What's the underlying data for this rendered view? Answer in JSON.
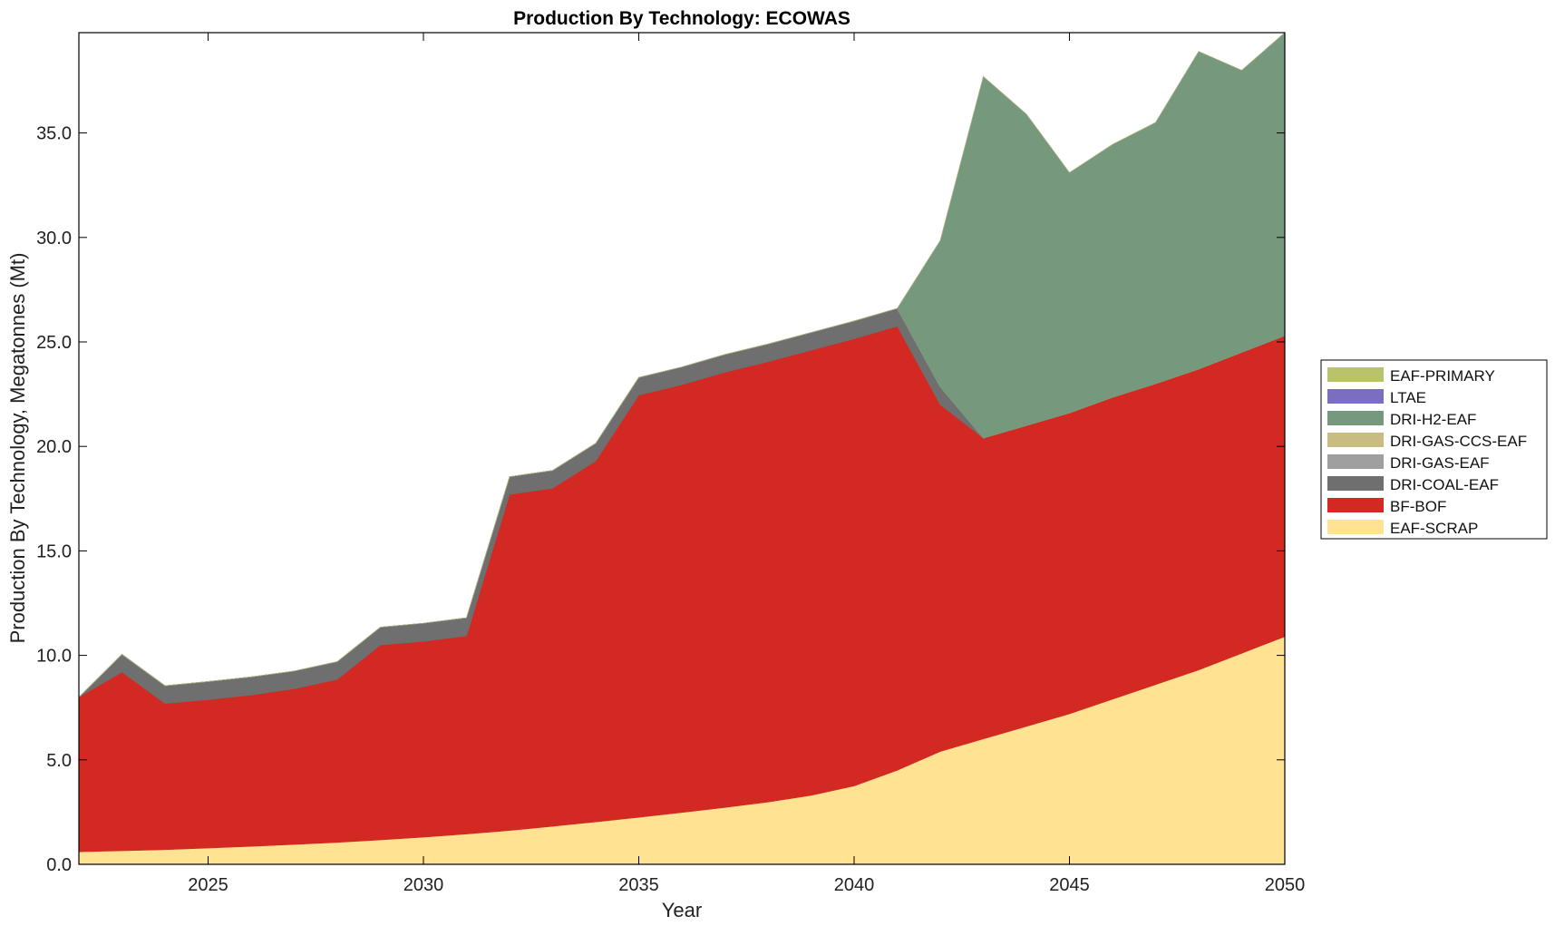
{
  "chart_data": {
    "type": "area",
    "stacked": true,
    "title": "Production By Technology: ECOWAS",
    "xlabel": "Year",
    "ylabel": "Production By Technology, Megatonnes (Mt)",
    "xlim": [
      2022,
      2050
    ],
    "ylim": [
      0,
      39.8
    ],
    "x_ticks": [
      2025,
      2030,
      2035,
      2040,
      2045,
      2050
    ],
    "y_ticks": [
      0,
      5,
      10,
      15,
      20,
      25,
      30,
      35
    ],
    "y_tick_labels": [
      "0.0",
      "5.0",
      "10.0",
      "15.0",
      "20.0",
      "25.0",
      "30.0",
      "35.0"
    ],
    "legend_position": "right",
    "x": [
      2022,
      2023,
      2024,
      2025,
      2026,
      2027,
      2028,
      2029,
      2030,
      2031,
      2032,
      2033,
      2034,
      2035,
      2036,
      2037,
      2038,
      2039,
      2040,
      2041,
      2042,
      2043,
      2044,
      2045,
      2046,
      2047,
      2048,
      2049,
      2050
    ],
    "series": [
      {
        "name": "EAF-SCRAP",
        "color": "#FFE292",
        "values": [
          0.6,
          0.65,
          0.7,
          0.78,
          0.86,
          0.95,
          1.05,
          1.17,
          1.3,
          1.45,
          1.62,
          1.82,
          2.03,
          2.25,
          2.48,
          2.72,
          2.98,
          3.3,
          3.75,
          4.5,
          5.4,
          6.0,
          6.6,
          7.2,
          7.9,
          8.6,
          9.3,
          10.1,
          10.9
        ]
      },
      {
        "name": "BF-BOF",
        "color": "#D22A23",
        "values": [
          7.4,
          8.55,
          7.0,
          7.1,
          7.24,
          7.45,
          7.8,
          9.33,
          9.37,
          9.48,
          16.08,
          16.18,
          17.27,
          20.2,
          20.47,
          20.83,
          21.07,
          21.3,
          21.4,
          21.25,
          16.6,
          14.4,
          14.4,
          14.4,
          14.45,
          14.4,
          14.4,
          14.4,
          14.4
        ]
      },
      {
        "name": "DRI-COAL-EAF",
        "color": "#6F6F6F",
        "values": [
          0.0,
          0.85,
          0.85,
          0.87,
          0.87,
          0.85,
          0.85,
          0.85,
          0.87,
          0.87,
          0.85,
          0.85,
          0.85,
          0.85,
          0.85,
          0.85,
          0.85,
          0.85,
          0.85,
          0.85,
          0.85,
          0.0,
          0.0,
          0.0,
          0.0,
          0.0,
          0.0,
          0.0,
          0.0
        ]
      },
      {
        "name": "DRI-GAS-EAF",
        "color": "#9F9F9F",
        "values": [
          0,
          0,
          0,
          0,
          0,
          0,
          0,
          0,
          0,
          0,
          0,
          0,
          0,
          0,
          0,
          0,
          0,
          0,
          0,
          0,
          0,
          0,
          0,
          0,
          0,
          0,
          0,
          0,
          0
        ]
      },
      {
        "name": "DRI-GAS-CCS-EAF",
        "color": "#C8BC80",
        "values": [
          0,
          0,
          0,
          0,
          0,
          0,
          0,
          0,
          0,
          0,
          0,
          0,
          0,
          0,
          0,
          0,
          0,
          0,
          0,
          0,
          0,
          0,
          0,
          0,
          0,
          0,
          0,
          0,
          0
        ]
      },
      {
        "name": "DRI-H2-EAF",
        "color": "#76987D",
        "values": [
          0,
          0,
          0,
          0,
          0,
          0,
          0,
          0,
          0,
          0,
          0,
          0,
          0,
          0,
          0,
          0,
          0,
          0,
          0,
          0,
          7.0,
          17.3,
          14.9,
          11.5,
          12.1,
          12.5,
          15.2,
          13.5,
          14.5
        ]
      },
      {
        "name": "LTAE",
        "color": "#7B6EC0",
        "values": [
          0,
          0,
          0,
          0,
          0,
          0,
          0,
          0,
          0,
          0,
          0,
          0,
          0,
          0,
          0,
          0,
          0,
          0,
          0,
          0,
          0,
          0,
          0,
          0,
          0,
          0,
          0,
          0,
          0
        ]
      },
      {
        "name": "EAF-PRIMARY",
        "color": "#B9C46A",
        "values": [
          0,
          0,
          0,
          0,
          0,
          0,
          0,
          0,
          0,
          0,
          0,
          0,
          0,
          0,
          0,
          0,
          0,
          0,
          0,
          0,
          0,
          0,
          0,
          0,
          0,
          0,
          0,
          0,
          0
        ]
      }
    ],
    "legend_order": [
      "EAF-PRIMARY",
      "LTAE",
      "DRI-H2-EAF",
      "DRI-GAS-CCS-EAF",
      "DRI-GAS-EAF",
      "DRI-COAL-EAF",
      "BF-BOF",
      "EAF-SCRAP"
    ]
  }
}
